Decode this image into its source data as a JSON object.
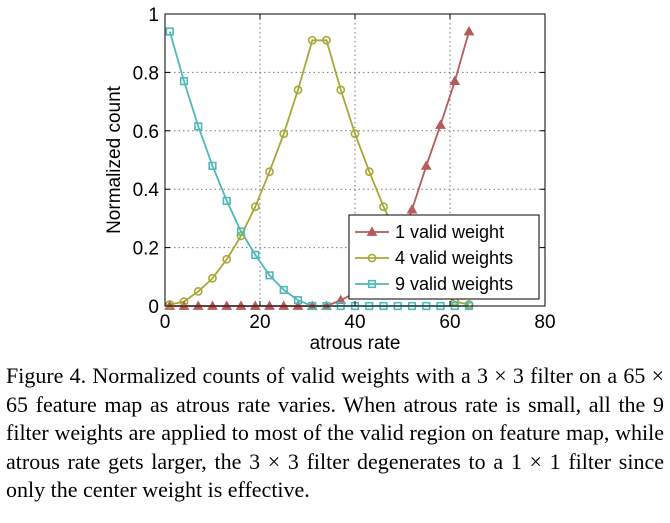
{
  "chart_data": {
    "type": "line",
    "xlabel": "atrous rate",
    "ylabel": "Normalized count",
    "xlim": [
      0,
      80
    ],
    "ylim": [
      0,
      1
    ],
    "xticks": [
      "0",
      "20",
      "40",
      "60",
      "80"
    ],
    "yticks": [
      "0",
      "0.2",
      "0.4",
      "0.6",
      "0.8",
      "1"
    ],
    "grid": true,
    "legend_position": "bottom-right",
    "x": [
      1,
      4,
      7,
      10,
      13,
      16,
      19,
      22,
      25,
      28,
      31,
      34,
      37,
      40,
      43,
      46,
      49,
      52,
      55,
      58,
      61,
      64
    ],
    "series": [
      {
        "name": "1 valid weight",
        "color": "#b65a5a",
        "marker": "triangle",
        "values": [
          0,
          0,
          0,
          0,
          0,
          0,
          0,
          0,
          0,
          0,
          0,
          0,
          0.02,
          0.045,
          0.07,
          0.1,
          0.2,
          0.33,
          0.48,
          0.62,
          0.77,
          0.94
        ]
      },
      {
        "name": "4 valid weights",
        "color": "#a8a838",
        "marker": "circle",
        "values": [
          0.005,
          0.015,
          0.05,
          0.095,
          0.16,
          0.24,
          0.34,
          0.46,
          0.59,
          0.74,
          0.91,
          0.91,
          0.74,
          0.59,
          0.46,
          0.34,
          0.24,
          0.16,
          0.1,
          0.05,
          0.015,
          0.005
        ]
      },
      {
        "name": "9 valid weights",
        "color": "#4fb8b8",
        "marker": "square",
        "values": [
          0.94,
          0.77,
          0.615,
          0.48,
          0.36,
          0.255,
          0.175,
          0.105,
          0.055,
          0.02,
          0,
          0,
          0,
          0,
          0,
          0,
          0,
          0,
          0,
          0,
          0,
          0
        ]
      }
    ]
  },
  "caption": "Figure 4. Normalized counts of valid weights with a 3 × 3 filter on a 65 × 65 feature map as atrous rate varies. When atrous rate is small, all the 9 filter weights are applied to most of the valid region on feature map, while atrous rate gets larger, the 3 × 3 filter degenerates to a 1 × 1 filter since only the center weight is effective."
}
